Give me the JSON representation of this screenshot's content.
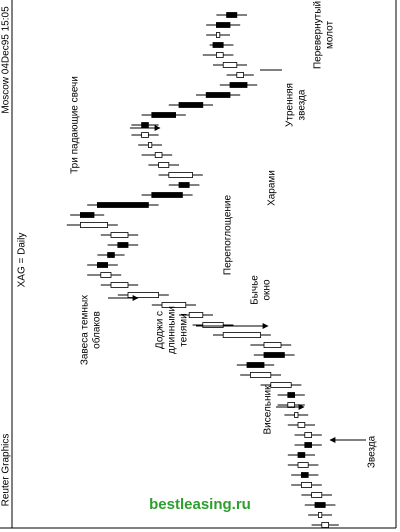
{
  "header": {
    "source": "Reuter Graphics",
    "timestamp": "Moscow 04Dec95 15:05",
    "instrument": "XAG = Daily"
  },
  "chart_data": {
    "type": "candlestick",
    "ylim": [
      0,
      100
    ],
    "up_color": "#ffffff",
    "down_color": "#000000",
    "open": [
      21,
      23,
      25,
      23,
      26,
      29,
      27,
      30,
      28,
      26,
      28,
      30,
      31,
      33,
      32,
      38,
      45,
      40,
      35,
      41,
      52,
      58,
      63,
      71,
      80,
      85,
      89,
      86,
      83,
      80,
      86,
      94,
      89,
      73,
      65,
      61,
      68,
      70,
      73,
      74,
      76,
      73,
      65,
      57,
      50,
      46,
      48,
      52,
      55,
      53,
      54,
      51
    ],
    "high": [
      26,
      27,
      28,
      29,
      32,
      32,
      33,
      33,
      31,
      31,
      33,
      34,
      36,
      36,
      41,
      47,
      48,
      43,
      44,
      55,
      61,
      65,
      73,
      83,
      88,
      92,
      92,
      89,
      86,
      88,
      98,
      97,
      92,
      76,
      68,
      71,
      74,
      76,
      77,
      79,
      79,
      76,
      68,
      60,
      53,
      51,
      55,
      58,
      56,
      57,
      57,
      54
    ],
    "low": [
      18,
      20,
      19,
      20,
      23,
      24,
      24,
      25,
      23,
      23,
      25,
      27,
      28,
      28,
      29,
      35,
      37,
      31,
      32,
      38,
      49,
      55,
      60,
      68,
      77,
      82,
      83,
      81,
      77,
      77,
      83,
      87,
      71,
      61,
      59,
      58,
      65,
      67,
      70,
      71,
      71,
      63,
      55,
      47,
      42,
      43,
      45,
      49,
      49,
      50,
      47,
      45
    ],
    "close": [
      23,
      24,
      22,
      26,
      29,
      27,
      30,
      28,
      26,
      28,
      30,
      31,
      33,
      31,
      38,
      44,
      40,
      34,
      40,
      52,
      58,
      62,
      70,
      80,
      85,
      88,
      86,
      84,
      80,
      85,
      94,
      90,
      74,
      64,
      62,
      68,
      71,
      72,
      74,
      76,
      74,
      66,
      58,
      50,
      45,
      48,
      52,
      54,
      52,
      54,
      50,
      48
    ],
    "annotations": [
      {
        "lines": [
          "Три падающие свечи"
        ]
      },
      {
        "lines": [
          "Завеса темных",
          "облаков"
        ]
      },
      {
        "lines": [
          "Доджи с",
          "длинными",
          "тенями"
        ]
      },
      {
        "lines": [
          "Бычье",
          "окно"
        ]
      },
      {
        "lines": [
          "Перепоглощение"
        ]
      },
      {
        "lines": [
          "Харами"
        ]
      },
      {
        "lines": [
          "Утренняя",
          "звезда"
        ]
      },
      {
        "lines": [
          "Перевернутый",
          "молот"
        ]
      },
      {
        "lines": [
          "Висельник"
        ]
      },
      {
        "lines": [
          "Звезда"
        ]
      }
    ]
  },
  "watermark": "bestleasing.ru"
}
